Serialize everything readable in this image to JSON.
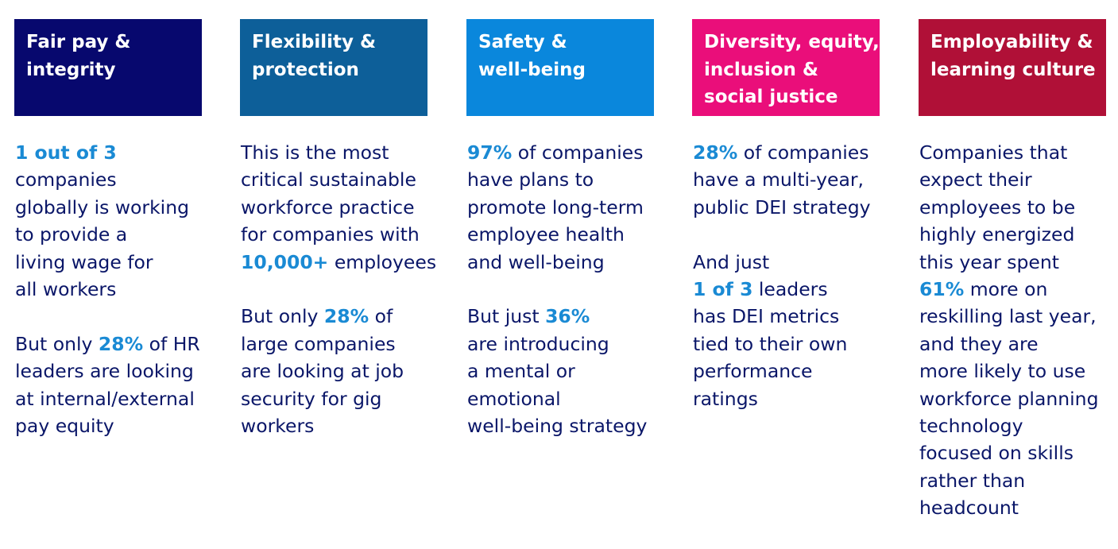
{
  "columns": [
    {
      "title": [
        "Fair pay &",
        "integrity"
      ],
      "color": "#07086e",
      "paragraphs": [
        [
          [
            {
              "t": "1 out of 3",
              "hl": true
            }
          ],
          [
            {
              "t": "companies"
            }
          ],
          [
            {
              "t": "globally is working"
            }
          ],
          [
            {
              "t": "to provide a"
            }
          ],
          [
            {
              "t": "living wage for"
            }
          ],
          [
            {
              "t": "all workers"
            }
          ]
        ],
        [
          [
            {
              "t": "But only "
            },
            {
              "t": "28%",
              "hl": true
            },
            {
              "t": " of HR"
            }
          ],
          [
            {
              "t": "leaders are looking"
            }
          ],
          [
            {
              "t": "at internal/external"
            }
          ],
          [
            {
              "t": "pay equity"
            }
          ]
        ]
      ]
    },
    {
      "title": [
        "Flexibility &",
        "protection"
      ],
      "color": "#0d5f99",
      "paragraphs": [
        [
          [
            {
              "t": "This is the most"
            }
          ],
          [
            {
              "t": "critical sustainable"
            }
          ],
          [
            {
              "t": "workforce practice"
            }
          ],
          [
            {
              "t": "for companies with"
            }
          ],
          [
            {
              "t": "10,000+",
              "hl": true
            },
            {
              "t": " employees"
            }
          ]
        ],
        [
          [
            {
              "t": "But only "
            },
            {
              "t": "28%",
              "hl": true
            },
            {
              "t": " of"
            }
          ],
          [
            {
              "t": "large companies"
            }
          ],
          [
            {
              "t": "are looking at job"
            }
          ],
          [
            {
              "t": "security for gig"
            }
          ],
          [
            {
              "t": "workers"
            }
          ]
        ]
      ]
    },
    {
      "title": [
        "Safety &",
        "well-being"
      ],
      "color": "#0a87dc",
      "paragraphs": [
        [
          [
            {
              "t": "97%",
              "hl": true
            },
            {
              "t": " of companies"
            }
          ],
          [
            {
              "t": "have plans to"
            }
          ],
          [
            {
              "t": "promote long-term"
            }
          ],
          [
            {
              "t": "employee health"
            }
          ],
          [
            {
              "t": "and well-being"
            }
          ]
        ],
        [
          [
            {
              "t": "But just "
            },
            {
              "t": "36%",
              "hl": true
            }
          ],
          [
            {
              "t": "are introducing"
            }
          ],
          [
            {
              "t": "a mental or"
            }
          ],
          [
            {
              "t": "emotional"
            }
          ],
          [
            {
              "t": "well-being strategy"
            }
          ]
        ]
      ]
    },
    {
      "title": [
        "Diversity, equity,",
        "inclusion &",
        "social justice"
      ],
      "color": "#ea0e7a",
      "paragraphs": [
        [
          [
            {
              "t": "28%",
              "hl": true
            },
            {
              "t": " of companies"
            }
          ],
          [
            {
              "t": "have a multi-year,"
            }
          ],
          [
            {
              "t": "public DEI strategy"
            }
          ]
        ],
        [
          [
            {
              "t": "And just"
            }
          ],
          [
            {
              "t": "1 of 3",
              "hl": true
            },
            {
              "t": " leaders"
            }
          ],
          [
            {
              "t": "has DEI metrics"
            }
          ],
          [
            {
              "t": "tied to their own"
            }
          ],
          [
            {
              "t": "performance"
            }
          ],
          [
            {
              "t": "ratings"
            }
          ]
        ]
      ]
    },
    {
      "title": [
        "Employability &",
        "learning culture"
      ],
      "color": "#b01037",
      "paragraphs": [
        [
          [
            {
              "t": "Companies that"
            }
          ],
          [
            {
              "t": "expect their"
            }
          ],
          [
            {
              "t": "employees to be"
            }
          ],
          [
            {
              "t": "highly energized"
            }
          ],
          [
            {
              "t": "this year spent"
            }
          ],
          [
            {
              "t": "61%",
              "hl": true
            },
            {
              "t": " more on"
            }
          ],
          [
            {
              "t": "reskilling last year,"
            }
          ],
          [
            {
              "t": "and they are"
            }
          ],
          [
            {
              "t": "more likely to use"
            }
          ],
          [
            {
              "t": "workforce planning"
            }
          ],
          [
            {
              "t": "technology"
            }
          ],
          [
            {
              "t": "focused on skills"
            }
          ],
          [
            {
              "t": "rather than"
            }
          ],
          [
            {
              "t": "headcount"
            }
          ]
        ]
      ]
    }
  ]
}
